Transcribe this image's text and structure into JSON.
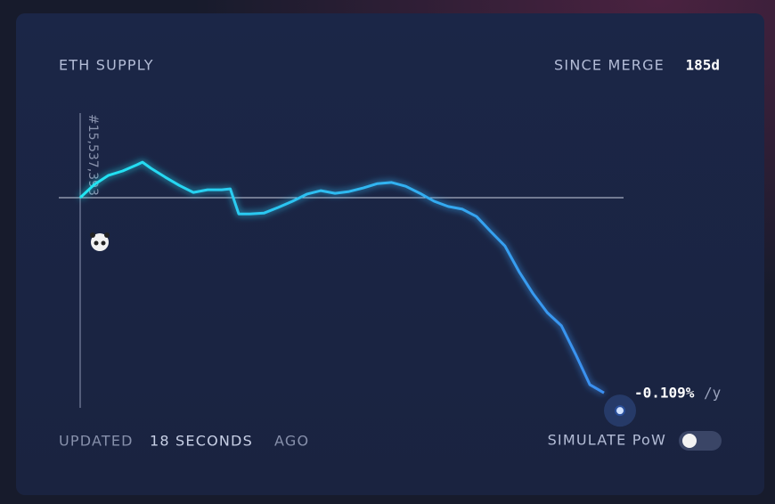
{
  "chart_data": {
    "type": "line",
    "title": "ETH SUPPLY",
    "since_label": "SINCE MERGE",
    "since_value": "185d",
    "baseline_label": "#15,537,393",
    "end_value_label": "-0.109%",
    "end_unit_label": "/y",
    "updated": {
      "prefix": "UPDATED",
      "amount": "18 SECONDS",
      "suffix": "AGO"
    },
    "toggle_label": "SIMULATE PoW",
    "x": [
      0,
      5,
      10,
      15,
      20,
      22,
      25,
      30,
      35,
      40,
      45,
      50,
      53,
      56,
      60,
      65,
      70,
      75,
      80,
      85,
      90,
      95,
      100,
      105,
      110,
      115,
      120,
      125,
      130,
      135,
      140,
      145,
      150,
      155,
      160,
      165,
      170,
      175,
      180,
      185
    ],
    "values": [
      0,
      4500,
      7600,
      9100,
      11200,
      12100,
      10000,
      7000,
      4200,
      1800,
      2700,
      2700,
      3000,
      -5500,
      -5500,
      -5200,
      -3300,
      -1200,
      1200,
      2400,
      1500,
      2100,
      3300,
      4800,
      5200,
      3900,
      1500,
      -1200,
      -3000,
      -3900,
      -6400,
      -11500,
      -16400,
      -25100,
      -32700,
      -39100,
      -43600,
      -53300,
      -63600,
      -66400
    ],
    "xlim": [
      0,
      185
    ],
    "ylim": [
      -71500,
      29400
    ],
    "colors": [
      "#22e6f2",
      "#3b8ef0"
    ]
  }
}
